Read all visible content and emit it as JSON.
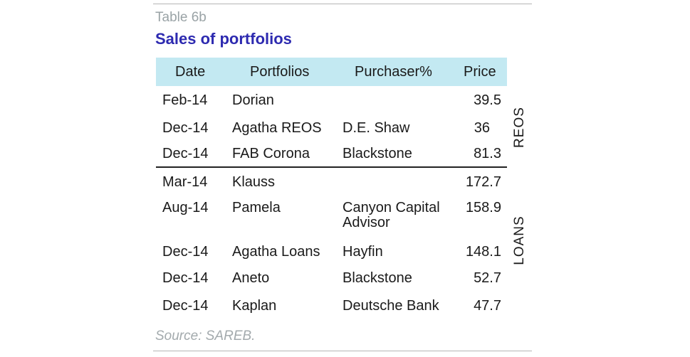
{
  "table": {
    "label": "Table 6b",
    "title": "Sales of portfolios",
    "headers": {
      "date": "Date",
      "portfolios": "Portfolios",
      "purchaser": "Purchaser%",
      "price": "Price"
    },
    "groups": {
      "reos": "REOS",
      "loans": "LOANS"
    },
    "rows": [
      {
        "date": "Feb-14",
        "portfolio": "Dorian",
        "purchaser_1": "",
        "purchaser_2": "",
        "price": "39.5"
      },
      {
        "date": "Dec-14",
        "portfolio": "Agatha REOS",
        "purchaser_1": "D.E. Shaw",
        "purchaser_2": "",
        "price": "36"
      },
      {
        "date": "Dec-14",
        "portfolio": "FAB Corona",
        "purchaser_1": "Blackstone",
        "purchaser_2": "",
        "price": "81.3"
      },
      {
        "date": "Mar-14",
        "portfolio": "Klauss",
        "purchaser_1": "",
        "purchaser_2": "",
        "price": "172.7"
      },
      {
        "date": "Aug-14",
        "portfolio": "Pamela",
        "purchaser_1": "Canyon Capital",
        "purchaser_2": "Advisor",
        "price": "158.9"
      },
      {
        "date": "Dec-14",
        "portfolio": "Agatha Loans",
        "purchaser_1": "Hayfin",
        "purchaser_2": "",
        "price": "148.1"
      },
      {
        "date": "Dec-14",
        "portfolio": "Aneto",
        "purchaser_1": "Blackstone",
        "purchaser_2": "",
        "price": "52.7"
      },
      {
        "date": "Dec-14",
        "portfolio": "Kaplan",
        "purchaser_1": "Deutsche Bank",
        "purchaser_2": "",
        "price": "47.7"
      }
    ],
    "source": "Source: SAREB."
  }
}
